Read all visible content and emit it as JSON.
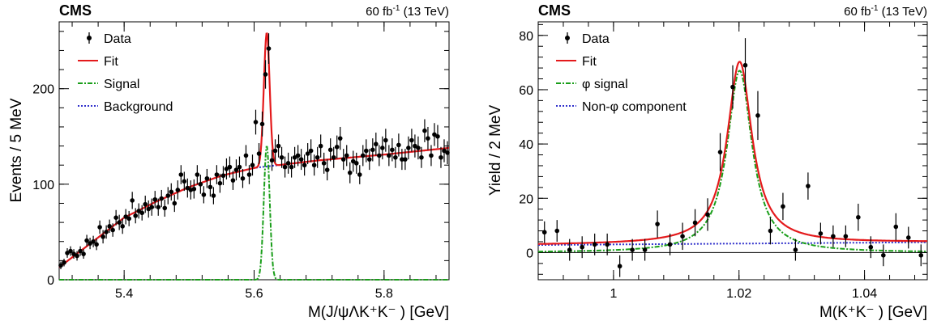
{
  "chart_data": [
    {
      "type": "scatter",
      "experiment": "CMS",
      "lumi_text": "60 fb",
      "lumi_sup": "-1",
      "lumi_energy": "(13 TeV)",
      "ylabel": "Events / 5 MeV",
      "xlabel": "M(J/ψΛK⁺K⁻ ) [GeV]",
      "xlim": [
        5.3,
        5.9
      ],
      "ylim": [
        0,
        270
      ],
      "xticks": [
        5.4,
        5.6,
        5.8
      ],
      "xticklabels": [
        "5.4",
        "5.6",
        "5.8"
      ],
      "yticks": [
        0,
        100,
        200
      ],
      "yticklabels": [
        "0",
        "100",
        "200"
      ],
      "legend": [
        "Data",
        "Fit",
        "Signal",
        "Background"
      ],
      "legend_position": "top-left",
      "colors": {
        "data": "#000000",
        "fit": "#e41a1c",
        "signal": "#1a9e1a",
        "background": "#3333cc"
      },
      "data": [
        [
          5.3025,
          15,
          4
        ],
        [
          5.3075,
          18,
          4
        ],
        [
          5.3125,
          28,
          5
        ],
        [
          5.3175,
          30,
          5
        ],
        [
          5.3225,
          27,
          5
        ],
        [
          5.3275,
          25,
          5
        ],
        [
          5.3325,
          30,
          5
        ],
        [
          5.3375,
          27,
          5
        ],
        [
          5.3425,
          41,
          6
        ],
        [
          5.3475,
          38,
          6
        ],
        [
          5.3525,
          40,
          6
        ],
        [
          5.3575,
          37,
          6
        ],
        [
          5.3625,
          55,
          7
        ],
        [
          5.3675,
          45,
          7
        ],
        [
          5.3725,
          50,
          7
        ],
        [
          5.3775,
          56,
          7
        ],
        [
          5.3825,
          52,
          7
        ],
        [
          5.3875,
          65,
          8
        ],
        [
          5.3925,
          60,
          8
        ],
        [
          5.3975,
          56,
          8
        ],
        [
          5.4025,
          66,
          8
        ],
        [
          5.4075,
          64,
          8
        ],
        [
          5.4125,
          83,
          9
        ],
        [
          5.4175,
          67,
          8
        ],
        [
          5.4225,
          72,
          8
        ],
        [
          5.4275,
          70,
          8
        ],
        [
          5.4325,
          79,
          9
        ],
        [
          5.4375,
          74,
          9
        ],
        [
          5.4425,
          76,
          9
        ],
        [
          5.4475,
          84,
          9
        ],
        [
          5.4525,
          76,
          9
        ],
        [
          5.4575,
          85,
          9
        ],
        [
          5.4625,
          75,
          9
        ],
        [
          5.4675,
          88,
          9
        ],
        [
          5.4725,
          92,
          9
        ],
        [
          5.4775,
          80,
          9
        ],
        [
          5.4825,
          94,
          10
        ],
        [
          5.4875,
          110,
          10
        ],
        [
          5.4925,
          103,
          10
        ],
        [
          5.4975,
          96,
          10
        ],
        [
          5.5025,
          94,
          10
        ],
        [
          5.5075,
          95,
          10
        ],
        [
          5.5125,
          110,
          10
        ],
        [
          5.5175,
          100,
          10
        ],
        [
          5.5225,
          89,
          9
        ],
        [
          5.5275,
          106,
          10
        ],
        [
          5.5325,
          97,
          10
        ],
        [
          5.5375,
          88,
          9
        ],
        [
          5.5425,
          110,
          10
        ],
        [
          5.5475,
          101,
          10
        ],
        [
          5.5525,
          109,
          10
        ],
        [
          5.5575,
          116,
          11
        ],
        [
          5.5625,
          118,
          11
        ],
        [
          5.5675,
          104,
          10
        ],
        [
          5.5725,
          115,
          11
        ],
        [
          5.5775,
          118,
          11
        ],
        [
          5.5825,
          106,
          10
        ],
        [
          5.5875,
          130,
          11
        ],
        [
          5.5925,
          110,
          10
        ],
        [
          5.5975,
          120,
          11
        ],
        [
          5.6025,
          165,
          13
        ],
        [
          5.6075,
          132,
          11
        ],
        [
          5.6125,
          163,
          13
        ],
        [
          5.6175,
          215,
          15
        ],
        [
          5.6225,
          242,
          16
        ],
        [
          5.6275,
          125,
          11
        ],
        [
          5.6325,
          135,
          12
        ],
        [
          5.6375,
          140,
          12
        ],
        [
          5.6425,
          128,
          11
        ],
        [
          5.6475,
          118,
          11
        ],
        [
          5.6525,
          122,
          11
        ],
        [
          5.6575,
          118,
          11
        ],
        [
          5.6625,
          128,
          11
        ],
        [
          5.6675,
          130,
          11
        ],
        [
          5.6725,
          126,
          11
        ],
        [
          5.6775,
          120,
          11
        ],
        [
          5.6825,
          132,
          11
        ],
        [
          5.6875,
          135,
          12
        ],
        [
          5.6925,
          120,
          11
        ],
        [
          5.6975,
          128,
          11
        ],
        [
          5.7025,
          140,
          12
        ],
        [
          5.7075,
          122,
          11
        ],
        [
          5.7125,
          115,
          11
        ],
        [
          5.7175,
          136,
          12
        ],
        [
          5.7225,
          128,
          11
        ],
        [
          5.7275,
          139,
          12
        ],
        [
          5.7325,
          148,
          12
        ],
        [
          5.7375,
          126,
          11
        ],
        [
          5.7425,
          130,
          11
        ],
        [
          5.7475,
          112,
          11
        ],
        [
          5.7525,
          124,
          11
        ],
        [
          5.7575,
          122,
          11
        ],
        [
          5.7625,
          110,
          10
        ],
        [
          5.7675,
          130,
          11
        ],
        [
          5.7725,
          135,
          12
        ],
        [
          5.7775,
          126,
          11
        ],
        [
          5.7825,
          136,
          12
        ],
        [
          5.7875,
          142,
          12
        ],
        [
          5.7925,
          130,
          11
        ],
        [
          5.7975,
          138,
          12
        ],
        [
          5.8025,
          146,
          12
        ],
        [
          5.8075,
          130,
          11
        ],
        [
          5.8125,
          136,
          12
        ],
        [
          5.8175,
          128,
          11
        ],
        [
          5.8225,
          141,
          12
        ],
        [
          5.8275,
          126,
          11
        ],
        [
          5.8325,
          126,
          11
        ],
        [
          5.8375,
          138,
          12
        ],
        [
          5.8425,
          146,
          12
        ],
        [
          5.8475,
          140,
          12
        ],
        [
          5.8525,
          138,
          12
        ],
        [
          5.8575,
          128,
          11
        ],
        [
          5.8625,
          156,
          12
        ],
        [
          5.8675,
          148,
          12
        ],
        [
          5.8725,
          130,
          11
        ],
        [
          5.8775,
          152,
          12
        ],
        [
          5.8825,
          150,
          12
        ],
        [
          5.8875,
          128,
          11
        ],
        [
          5.8925,
          135,
          12
        ],
        [
          5.8975,
          133,
          12
        ]
      ],
      "model": {
        "bg_points": [
          [
            5.3,
            13
          ],
          [
            5.4,
            65
          ],
          [
            5.45,
            82
          ],
          [
            5.5,
            97
          ],
          [
            5.55,
            109
          ],
          [
            5.6,
            117
          ],
          [
            5.7,
            125
          ],
          [
            5.8,
            131
          ],
          [
            5.9,
            138
          ]
        ],
        "signal_mean": 5.6195,
        "signal_sigma": 0.0045,
        "signal_peak": 140
      }
    },
    {
      "type": "scatter",
      "experiment": "CMS",
      "lumi_text": "60 fb",
      "lumi_sup": "-1",
      "lumi_energy": "(13 TeV)",
      "ylabel": "Yield / 2 MeV",
      "xlabel": "M(K⁺K⁻ ) [GeV]",
      "xlim": [
        0.988,
        1.05
      ],
      "ylim": [
        -10,
        85
      ],
      "xticks": [
        1.0,
        1.02,
        1.04
      ],
      "xticklabels": [
        "1",
        "1.02",
        "1.04"
      ],
      "yticks": [
        0,
        20,
        40,
        60,
        80
      ],
      "yticklabels": [
        "0",
        "20",
        "40",
        "60",
        "80"
      ],
      "legend": [
        "Data",
        "Fit",
        "φ signal",
        "Non-φ component"
      ],
      "legend_position": "top-left",
      "colors": {
        "data": "#000000",
        "fit": "#e41a1c",
        "signal": "#1a9e1a",
        "background": "#3333cc"
      },
      "data": [
        [
          0.989,
          7.5,
          4
        ],
        [
          0.991,
          8,
          4
        ],
        [
          0.993,
          1,
          4
        ],
        [
          0.995,
          2,
          4
        ],
        [
          0.997,
          3,
          4
        ],
        [
          0.999,
          3,
          4
        ],
        [
          1.001,
          -5,
          4
        ],
        [
          1.003,
          1,
          4
        ],
        [
          1.005,
          1,
          4
        ],
        [
          1.007,
          10.5,
          5
        ],
        [
          1.009,
          3,
          4
        ],
        [
          1.011,
          6,
          5
        ],
        [
          1.013,
          11,
          5
        ],
        [
          1.015,
          14,
          6
        ],
        [
          1.017,
          37,
          7
        ],
        [
          1.019,
          61,
          8
        ],
        [
          1.021,
          69,
          10
        ],
        [
          1.023,
          50.5,
          9
        ],
        [
          1.025,
          8,
          5
        ],
        [
          1.027,
          17,
          5
        ],
        [
          1.029,
          1,
          4
        ],
        [
          1.031,
          24.5,
          5
        ],
        [
          1.033,
          7,
          4
        ],
        [
          1.035,
          6,
          4
        ],
        [
          1.037,
          6,
          4
        ],
        [
          1.039,
          13,
          5
        ],
        [
          1.041,
          2,
          4
        ],
        [
          1.043,
          -1,
          4
        ],
        [
          1.045,
          9.5,
          5
        ],
        [
          1.047,
          5.5,
          4
        ],
        [
          1.049,
          -1,
          4
        ]
      ],
      "model": {
        "bg_a": 2.8,
        "bg_b": 1.0,
        "signal_mean": 1.0201,
        "signal_gamma": 0.0048,
        "signal_peak": 67
      }
    }
  ]
}
